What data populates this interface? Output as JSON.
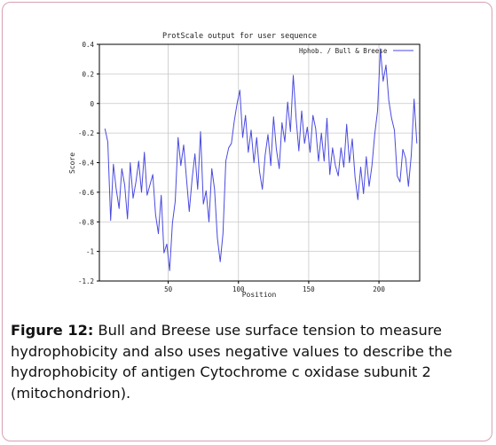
{
  "chart_data": {
    "type": "line",
    "title": "ProtScale output for user sequence",
    "xlabel": "Position",
    "ylabel": "Score",
    "legend": {
      "label": "Hphob. / Bull & Breese",
      "placement": "top-right"
    },
    "xlim": [
      1,
      229
    ],
    "ylim": [
      -1.2,
      0.4
    ],
    "x_ticks": [
      50,
      100,
      150,
      200
    ],
    "x_tick_labels": [
      "50",
      "100",
      "150",
      "200"
    ],
    "y_ticks": [
      0.4,
      0.2,
      0,
      -0.2,
      -0.4,
      -0.6,
      -0.8,
      -1,
      -1.2
    ],
    "y_tick_labels": [
      "0.4",
      "0.2",
      "0",
      "-0.2",
      "-0.4",
      "-0.6",
      "-0.8",
      "-1",
      "-1.2"
    ],
    "grid": true,
    "series": [
      {
        "name": "Hphob. / Bull & Breese",
        "color": "#4a4ae0",
        "x": [
          5,
          7,
          9,
          11,
          13,
          15,
          17,
          19,
          21,
          23,
          25,
          27,
          29,
          31,
          33,
          35,
          37,
          39,
          41,
          43,
          45,
          47,
          49,
          51,
          53,
          55,
          57,
          59,
          61,
          63,
          65,
          67,
          69,
          71,
          73,
          75,
          77,
          79,
          81,
          83,
          85,
          87,
          89,
          91,
          93,
          95,
          97,
          99,
          101,
          103,
          105,
          107,
          109,
          111,
          113,
          115,
          117,
          119,
          121,
          123,
          125,
          127,
          129,
          131,
          133,
          135,
          137,
          139,
          141,
          143,
          145,
          147,
          149,
          151,
          153,
          155,
          157,
          159,
          161,
          163,
          165,
          167,
          169,
          171,
          173,
          175,
          177,
          179,
          181,
          183,
          185,
          187,
          189,
          191,
          193,
          195,
          197,
          199,
          201,
          203,
          205,
          207,
          209,
          211,
          213,
          215,
          217,
          219,
          221,
          223,
          225,
          227
        ],
        "y": [
          -0.17,
          -0.26,
          -0.79,
          -0.41,
          -0.58,
          -0.71,
          -0.44,
          -0.55,
          -0.78,
          -0.4,
          -0.64,
          -0.53,
          -0.39,
          -0.6,
          -0.33,
          -0.62,
          -0.55,
          -0.48,
          -0.75,
          -0.88,
          -0.62,
          -1.01,
          -0.95,
          -1.13,
          -0.81,
          -0.66,
          -0.23,
          -0.42,
          -0.28,
          -0.51,
          -0.73,
          -0.51,
          -0.34,
          -0.58,
          -0.19,
          -0.68,
          -0.59,
          -0.8,
          -0.44,
          -0.58,
          -0.91,
          -1.07,
          -0.88,
          -0.39,
          -0.3,
          -0.27,
          -0.12,
          0.0,
          0.09,
          -0.23,
          -0.08,
          -0.33,
          -0.18,
          -0.4,
          -0.23,
          -0.46,
          -0.58,
          -0.35,
          -0.21,
          -0.42,
          -0.09,
          -0.31,
          -0.44,
          -0.13,
          -0.26,
          0.01,
          -0.19,
          0.19,
          -0.1,
          -0.32,
          -0.05,
          -0.27,
          -0.16,
          -0.33,
          -0.08,
          -0.17,
          -0.39,
          -0.2,
          -0.39,
          -0.1,
          -0.48,
          -0.3,
          -0.42,
          -0.49,
          -0.3,
          -0.43,
          -0.14,
          -0.4,
          -0.24,
          -0.5,
          -0.65,
          -0.43,
          -0.61,
          -0.36,
          -0.56,
          -0.42,
          -0.21,
          -0.05,
          0.37,
          0.15,
          0.26,
          0.02,
          -0.1,
          -0.18,
          -0.49,
          -0.53,
          -0.31,
          -0.37,
          -0.56,
          -0.35,
          0.03,
          -0.27
        ]
      }
    ]
  },
  "caption": {
    "label": "Figure 12:",
    "text": " Bull and Breese use surface tension to measure hydrophobicity and also uses negative values to describe the hydrophobicity of antigen Cytochrome c oxidase subunit 2 (mitochondrion)."
  }
}
